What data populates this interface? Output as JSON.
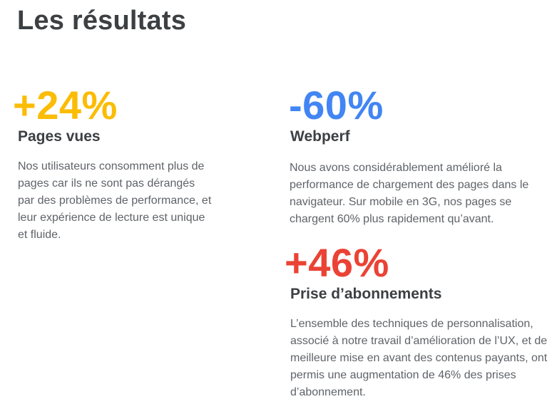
{
  "page": {
    "title": "Les résultats"
  },
  "stats": [
    {
      "value": "+24%",
      "label": "Pages vues",
      "description": "Nos utilisateurs consomment plus de pages car ils ne sont pas dérangés par des problèmes de performance, et leur expérience de lecture est unique et fluide.",
      "color": "#fbbc04"
    },
    {
      "value": "-60%",
      "label": "Webperf",
      "description": "Nous avons considérablement amélioré la performance de chargement des pages dans le navigateur. Sur mobile en 3G, nos pages se chargent 60% plus rapidement qu’avant.",
      "color": "#4285f4"
    },
    {
      "value": "+46%",
      "label": "Prise d’abonnements",
      "description": "L’ensemble des techniques de personnalisation, associé à notre travail d’amélioration de l’UX, et de meilleure mise en avant des contenus payants, ont permis une augmentation de 46% des prises d’abonnement.",
      "color": "#ea4335"
    }
  ]
}
